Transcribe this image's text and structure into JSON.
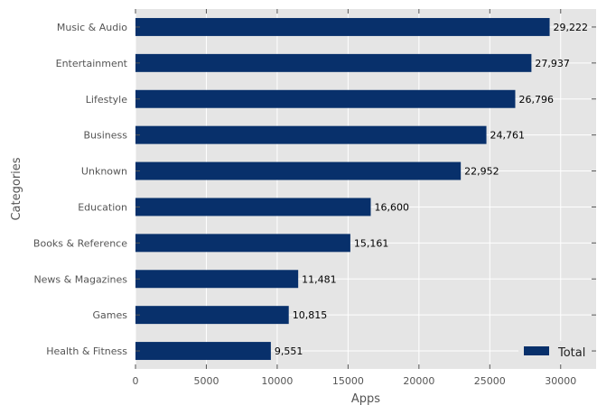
{
  "chart_data": {
    "type": "bar",
    "orientation": "horizontal",
    "categories": [
      "Health & Fitness",
      "Games",
      "News & Magazines",
      "Books & Reference",
      "Education",
      "Unknown",
      "Business",
      "Lifestyle",
      "Entertainment",
      "Music & Audio"
    ],
    "series": [
      {
        "name": "Total",
        "values": [
          9551,
          10815,
          11481,
          15161,
          16600,
          22952,
          24761,
          26796,
          27937,
          29222
        ],
        "data_labels": [
          "9,551",
          "10,815",
          "11,481",
          "15,161",
          "16,600",
          "22,952",
          "24,761",
          "26,796",
          "27,937",
          "29,222"
        ]
      }
    ],
    "xlabel": "Apps",
    "ylabel": "Categories",
    "xlim": [
      0,
      32500
    ],
    "x_ticks": [
      0,
      5000,
      10000,
      15000,
      20000,
      25000,
      30000
    ],
    "x_tick_labels": [
      "0",
      "5000",
      "10000",
      "15000",
      "20000",
      "25000",
      "30000"
    ],
    "grid": true,
    "legend_position": "bottom-right",
    "colors": {
      "bar": "#08306b",
      "plot_background": "#e5e5e5",
      "grid": "#ffffff"
    }
  }
}
